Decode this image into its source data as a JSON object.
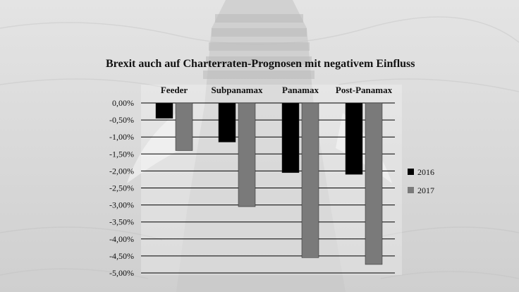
{
  "chart_data": {
    "type": "bar",
    "title": "Brexit auch auf Charterraten-Prognosen mit negativem Einfluss",
    "categories": [
      "Feeder",
      "Subpanamax",
      "Panamax",
      "Post-Panamax"
    ],
    "series": [
      {
        "name": "2016",
        "color": "#000000",
        "values": [
          -0.45,
          -1.15,
          -2.05,
          -2.1
        ]
      },
      {
        "name": "2017",
        "color": "#7a7a7a",
        "values": [
          -1.4,
          -3.05,
          -4.55,
          -4.75
        ]
      }
    ],
    "yticks": [
      "0,00%",
      "-0,50%",
      "-1,00%",
      "-1,50%",
      "-2,00%",
      "-2,50%",
      "-3,00%",
      "-3,50%",
      "-4,00%",
      "-4,50%",
      "-5,00%"
    ],
    "ylim": [
      -5,
      0
    ],
    "grid": true,
    "legend_position": "right"
  }
}
